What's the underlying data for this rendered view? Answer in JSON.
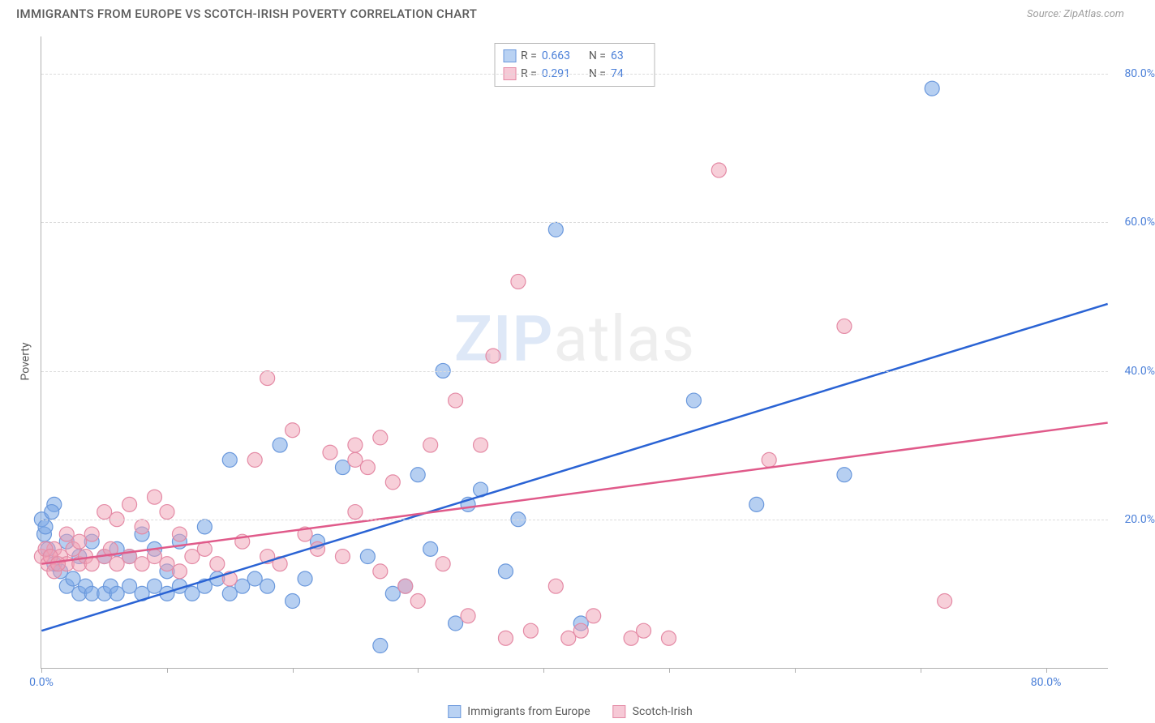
{
  "title": "IMMIGRANTS FROM EUROPE VS SCOTCH-IRISH POVERTY CORRELATION CHART",
  "source": "Source: ZipAtlas.com",
  "watermark_a": "ZIP",
  "watermark_b": "atlas",
  "y_label": "Poverty",
  "chart": {
    "type": "scatter",
    "xlim": [
      0,
      85
    ],
    "ylim": [
      0,
      85
    ],
    "x_ticks": [
      0,
      10,
      20,
      30,
      40,
      50,
      60,
      70,
      80
    ],
    "y_ticks": [
      20,
      40,
      60,
      80
    ],
    "x_tick_labels": {
      "0": "0.0%",
      "80": "80.0%"
    },
    "y_tick_labels": {
      "20": "20.0%",
      "40": "40.0%",
      "60": "60.0%",
      "80": "80.0%"
    },
    "grid_color": "#dcdcdc",
    "axis_color": "#b0b0b0",
    "tick_label_color": "#4a7fd8",
    "background_color": "#ffffff",
    "series": [
      {
        "name": "Immigrants from Europe",
        "point_color": "rgba(122,168,230,0.55)",
        "point_stroke": "#6a98dc",
        "line_color": "#2a63d4",
        "swatch_fill": "#b9d2f3",
        "swatch_border": "#6a98dc",
        "R": "0.663",
        "N": "63",
        "trend": {
          "x1": 0,
          "y1": 5,
          "x2": 85,
          "y2": 49
        },
        "points": [
          [
            0,
            20
          ],
          [
            0.5,
            16
          ],
          [
            1,
            14
          ],
          [
            1,
            22
          ],
          [
            1.5,
            13
          ],
          [
            2,
            11
          ],
          [
            2,
            17
          ],
          [
            2.5,
            12
          ],
          [
            3,
            10
          ],
          [
            3,
            15
          ],
          [
            3.5,
            11
          ],
          [
            4,
            10
          ],
          [
            4,
            17
          ],
          [
            5,
            10
          ],
          [
            5,
            15
          ],
          [
            5.5,
            11
          ],
          [
            6,
            10
          ],
          [
            6,
            16
          ],
          [
            7,
            11
          ],
          [
            7,
            15
          ],
          [
            8,
            10
          ],
          [
            8,
            18
          ],
          [
            9,
            11
          ],
          [
            9,
            16
          ],
          [
            10,
            10
          ],
          [
            10,
            13
          ],
          [
            11,
            11
          ],
          [
            11,
            17
          ],
          [
            12,
            10
          ],
          [
            13,
            11
          ],
          [
            13,
            19
          ],
          [
            14,
            12
          ],
          [
            15,
            10
          ],
          [
            15,
            28
          ],
          [
            16,
            11
          ],
          [
            17,
            12
          ],
          [
            18,
            11
          ],
          [
            19,
            30
          ],
          [
            20,
            9
          ],
          [
            21,
            12
          ],
          [
            22,
            17
          ],
          [
            24,
            27
          ],
          [
            26,
            15
          ],
          [
            27,
            3
          ],
          [
            28,
            10
          ],
          [
            29,
            11
          ],
          [
            30,
            26
          ],
          [
            31,
            16
          ],
          [
            32,
            40
          ],
          [
            33,
            6
          ],
          [
            34,
            22
          ],
          [
            35,
            24
          ],
          [
            37,
            13
          ],
          [
            38,
            20
          ],
          [
            41,
            59
          ],
          [
            43,
            6
          ],
          [
            52,
            36
          ],
          [
            57,
            22
          ],
          [
            64,
            26
          ],
          [
            71,
            78
          ],
          [
            0.2,
            18
          ],
          [
            0.3,
            19
          ],
          [
            0.8,
            21
          ]
        ]
      },
      {
        "name": "Scotch-Irish",
        "point_color": "rgba(240,160,180,0.5)",
        "point_stroke": "#e48aa5",
        "line_color": "#e05a8a",
        "swatch_fill": "#f6c9d6",
        "swatch_border": "#e48aa5",
        "R": "0.291",
        "N": "74",
        "trend": {
          "x1": 0,
          "y1": 14,
          "x2": 85,
          "y2": 33
        },
        "points": [
          [
            0,
            15
          ],
          [
            0.5,
            14
          ],
          [
            1,
            13
          ],
          [
            1,
            16
          ],
          [
            1.5,
            15
          ],
          [
            2,
            14
          ],
          [
            2,
            18
          ],
          [
            2.5,
            16
          ],
          [
            3,
            14
          ],
          [
            3,
            17
          ],
          [
            3.5,
            15
          ],
          [
            4,
            14
          ],
          [
            4,
            18
          ],
          [
            5,
            15
          ],
          [
            5,
            21
          ],
          [
            5.5,
            16
          ],
          [
            6,
            14
          ],
          [
            6,
            20
          ],
          [
            7,
            15
          ],
          [
            7,
            22
          ],
          [
            8,
            14
          ],
          [
            8,
            19
          ],
          [
            9,
            15
          ],
          [
            9,
            23
          ],
          [
            10,
            14
          ],
          [
            10,
            21
          ],
          [
            11,
            13
          ],
          [
            11,
            18
          ],
          [
            12,
            15
          ],
          [
            13,
            16
          ],
          [
            14,
            14
          ],
          [
            15,
            12
          ],
          [
            16,
            17
          ],
          [
            17,
            28
          ],
          [
            18,
            15
          ],
          [
            18,
            39
          ],
          [
            19,
            14
          ],
          [
            20,
            32
          ],
          [
            21,
            18
          ],
          [
            22,
            16
          ],
          [
            23,
            29
          ],
          [
            24,
            15
          ],
          [
            25,
            28
          ],
          [
            25,
            30
          ],
          [
            25,
            21
          ],
          [
            26,
            27
          ],
          [
            27,
            13
          ],
          [
            27,
            31
          ],
          [
            28,
            25
          ],
          [
            29,
            11
          ],
          [
            30,
            9
          ],
          [
            31,
            30
          ],
          [
            32,
            14
          ],
          [
            33,
            36
          ],
          [
            34,
            7
          ],
          [
            35,
            30
          ],
          [
            36,
            42
          ],
          [
            37,
            4
          ],
          [
            38,
            52
          ],
          [
            39,
            5
          ],
          [
            41,
            11
          ],
          [
            42,
            4
          ],
          [
            43,
            5
          ],
          [
            44,
            7
          ],
          [
            47,
            4
          ],
          [
            48,
            5
          ],
          [
            50,
            4
          ],
          [
            54,
            67
          ],
          [
            58,
            28
          ],
          [
            64,
            46
          ],
          [
            72,
            9
          ],
          [
            0.3,
            16
          ],
          [
            0.7,
            15
          ],
          [
            1.3,
            14
          ]
        ]
      }
    ],
    "stats_labels": {
      "r": "R =",
      "n": "N ="
    },
    "point_radius": 9
  }
}
